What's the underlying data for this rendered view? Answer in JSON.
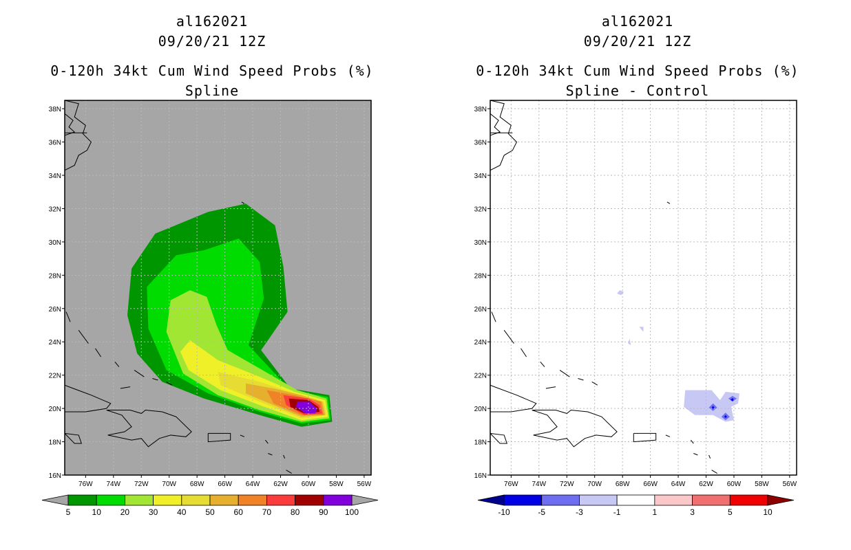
{
  "chart_data": [
    {
      "type": "heatmap",
      "storm_id": "al162021",
      "datetime": "09/20/21 12Z",
      "title": "0-120h 34kt Cum Wind Speed Probs (%)",
      "subtitle": "Spline",
      "units": "%",
      "lon_range": [
        -77.5,
        -55.5
      ],
      "lat_range": [
        16,
        38.5
      ],
      "x_ticks": [
        "76W",
        "74W",
        "72W",
        "70W",
        "68W",
        "66W",
        "64W",
        "62W",
        "60W",
        "58W",
        "56W"
      ],
      "y_ticks": [
        "16N",
        "18N",
        "20N",
        "22N",
        "24N",
        "26N",
        "28N",
        "30N",
        "32N",
        "34N",
        "36N",
        "38N"
      ],
      "grid": true,
      "colorbar": {
        "labels": [
          "5",
          "10",
          "20",
          "30",
          "40",
          "50",
          "60",
          "70",
          "80",
          "90",
          "100"
        ],
        "colors": [
          "#009600",
          "#00dc00",
          "#a0e632",
          "#f0f028",
          "#e6dc32",
          "#e6af2d",
          "#f08228",
          "#fa3c3c",
          "#a00000",
          "#8200dc"
        ],
        "extend_colors": [
          "#a6a6a6",
          "#a6a6a6"
        ]
      },
      "background_color": "#a6a6a6",
      "probability_contours": [
        {
          "min": 5,
          "color": "#009600",
          "polygon": [
            [
              -67.2,
              31.8
            ],
            [
              -64.5,
              32.3
            ],
            [
              -62.4,
              31
            ],
            [
              -61.8,
              28.5
            ],
            [
              -61.5,
              25.8
            ],
            [
              -63.4,
              23.5
            ],
            [
              -61.3,
              21.2
            ],
            [
              -58.5,
              20.8
            ],
            [
              -58.3,
              19.2
            ],
            [
              -60.5,
              18.9
            ],
            [
              -63.5,
              19.6
            ],
            [
              -67.5,
              20.6
            ],
            [
              -70.5,
              21.6
            ],
            [
              -72.3,
              23.3
            ],
            [
              -73,
              25.6
            ],
            [
              -72.7,
              28.4
            ],
            [
              -71,
              30.5
            ]
          ]
        },
        {
          "min": 10,
          "color": "#00dc00",
          "polygon": [
            [
              -67.5,
              29.5
            ],
            [
              -65,
              30.2
            ],
            [
              -63.5,
              28.8
            ],
            [
              -63.2,
              26.6
            ],
            [
              -64.3,
              23.8
            ],
            [
              -61.3,
              21.1
            ],
            [
              -58.6,
              20.7
            ],
            [
              -58.4,
              19.3
            ],
            [
              -60.5,
              19.1
            ],
            [
              -63.5,
              19.8
            ],
            [
              -67.2,
              20.9
            ],
            [
              -70.2,
              22.3
            ],
            [
              -71.5,
              24.8
            ],
            [
              -71.6,
              27.3
            ],
            [
              -69.5,
              29.2
            ]
          ]
        },
        {
          "min": 20,
          "color": "#a0e632",
          "polygon": [
            [
              -68.5,
              27.1
            ],
            [
              -67.3,
              26.7
            ],
            [
              -66.6,
              25
            ],
            [
              -65.8,
              23.5
            ],
            [
              -63.5,
              22.4
            ],
            [
              -60.8,
              21.1
            ],
            [
              -58.7,
              20.6
            ],
            [
              -58.5,
              19.4
            ],
            [
              -60.5,
              19.2
            ],
            [
              -63.5,
              19.9
            ],
            [
              -66.5,
              20.8
            ],
            [
              -69,
              22.1
            ],
            [
              -70.2,
              24.6
            ],
            [
              -69.9,
              26.5
            ]
          ]
        },
        {
          "min": 30,
          "color": "#f0f028",
          "polygon": [
            [
              -68.5,
              24.1
            ],
            [
              -66.5,
              22.9
            ],
            [
              -63.5,
              21.9
            ],
            [
              -61,
              21
            ],
            [
              -58.8,
              20.5
            ],
            [
              -58.6,
              19.5
            ],
            [
              -60.5,
              19.3
            ],
            [
              -63.5,
              20.2
            ],
            [
              -66.3,
              21.1
            ],
            [
              -68.6,
              22.3
            ],
            [
              -69.2,
              23.4
            ]
          ]
        },
        {
          "min": 40,
          "color": "#e6dc32",
          "polygon": [
            [
              -66.5,
              22.2
            ],
            [
              -63.5,
              21.6
            ],
            [
              -61,
              20.9
            ],
            [
              -58.9,
              20.4
            ],
            [
              -58.7,
              19.6
            ],
            [
              -60.5,
              19.4
            ],
            [
              -63.5,
              20.4
            ],
            [
              -66.3,
              21.4
            ]
          ]
        },
        {
          "min": 50,
          "color": "#e6af2d",
          "polygon": [
            [
              -64.5,
              21.5
            ],
            [
              -62.5,
              21.2
            ],
            [
              -60.5,
              20.8
            ],
            [
              -59,
              20.4
            ],
            [
              -58.8,
              19.6
            ],
            [
              -60.5,
              19.5
            ],
            [
              -62.5,
              20.2
            ],
            [
              -64.5,
              20.9
            ]
          ]
        },
        {
          "min": 60,
          "color": "#f08228",
          "polygon": [
            [
              -63,
              21.1
            ],
            [
              -61,
              20.8
            ],
            [
              -59.1,
              20.4
            ],
            [
              -58.9,
              19.6
            ],
            [
              -60.5,
              19.6
            ],
            [
              -62.5,
              20.3
            ]
          ]
        },
        {
          "min": 70,
          "color": "#fa3c3c",
          "polygon": [
            [
              -61.8,
              20.8
            ],
            [
              -60,
              20.6
            ],
            [
              -59.2,
              20.2
            ],
            [
              -59,
              19.7
            ],
            [
              -60.3,
              19.6
            ],
            [
              -61.6,
              20.2
            ]
          ]
        },
        {
          "min": 80,
          "color": "#a00000",
          "polygon": [
            [
              -61.4,
              20.6
            ],
            [
              -60,
              20.5
            ],
            [
              -59.3,
              20.1
            ],
            [
              -59.2,
              19.8
            ],
            [
              -60.3,
              19.7
            ],
            [
              -61.3,
              20.1
            ]
          ]
        },
        {
          "min": 90,
          "color": "#8200dc",
          "polygon": [
            [
              -60.8,
              20.4
            ],
            [
              -59.9,
              20.4
            ],
            [
              -59.4,
              20
            ],
            [
              -59.5,
              19.7
            ],
            [
              -60.2,
              19.7
            ],
            [
              -60.9,
              20.1
            ]
          ]
        }
      ]
    },
    {
      "type": "heatmap",
      "storm_id": "al162021",
      "datetime": "09/20/21 12Z",
      "title": "0-120h 34kt Cum Wind Speed Probs (%)",
      "subtitle": "Spline - Control",
      "units": "%",
      "lon_range": [
        -77.5,
        -55.5
      ],
      "lat_range": [
        16,
        38.5
      ],
      "x_ticks": [
        "76W",
        "74W",
        "72W",
        "70W",
        "68W",
        "66W",
        "64W",
        "62W",
        "60W",
        "58W",
        "56W"
      ],
      "y_ticks": [
        "16N",
        "18N",
        "20N",
        "22N",
        "24N",
        "26N",
        "28N",
        "30N",
        "32N",
        "34N",
        "36N",
        "38N"
      ],
      "grid": true,
      "colorbar": {
        "labels": [
          "-10",
          "-5",
          "-3",
          "-1",
          "1",
          "3",
          "5",
          "10"
        ],
        "colors": [
          "#0000e6",
          "#6e6ef0",
          "#c8c8f5",
          "#ffffff",
          "#fac8c8",
          "#f07070",
          "#f00000"
        ],
        "extend_colors": [
          "#00008c",
          "#8c0000"
        ]
      },
      "background_color": "#ffffff",
      "difference_contours": [
        {
          "range": "-3 to -1",
          "color": "#c8c8f5",
          "polygon": [
            [
              -68.2,
              27.1
            ],
            [
              -67.9,
              27
            ],
            [
              -68.1,
              26.8
            ],
            [
              -68.4,
              26.9
            ]
          ]
        },
        {
          "range": "-3 to -1",
          "color": "#c8c8f5",
          "polygon": [
            [
              -66.8,
              24.9
            ],
            [
              -66.5,
              24.9
            ],
            [
              -66.5,
              24.6
            ]
          ]
        },
        {
          "range": "-3 to -1",
          "color": "#c8c8f5",
          "polygon": [
            [
              -67.5,
              24.2
            ],
            [
              -67.4,
              23.8
            ],
            [
              -67.6,
              23.9
            ]
          ]
        },
        {
          "range": "-3 to -1",
          "color": "#c8c8f5",
          "polygon": [
            [
              -63.5,
              21.1
            ],
            [
              -61.6,
              21.1
            ],
            [
              -61,
              20.5
            ],
            [
              -60.6,
              21
            ],
            [
              -59.6,
              20.9
            ],
            [
              -59.7,
              20.3
            ],
            [
              -60.2,
              20.1
            ],
            [
              -60,
              19.3
            ],
            [
              -60.6,
              19.2
            ],
            [
              -61.5,
              19.6
            ],
            [
              -62.8,
              19.6
            ],
            [
              -63.6,
              20.1
            ]
          ]
        },
        {
          "range": "-5 to -3",
          "color": "#6e6ef0",
          "polygon": [
            [
              -60.1,
              20.75
            ],
            [
              -59.8,
              20.6
            ],
            [
              -60.1,
              20.4
            ],
            [
              -60.4,
              20.6
            ]
          ]
        },
        {
          "range": "-5 to -3",
          "color": "#6e6ef0",
          "polygon": [
            [
              -61.5,
              20.3
            ],
            [
              -61.2,
              20.05
            ],
            [
              -61.5,
              19.85
            ],
            [
              -61.8,
              20.05
            ]
          ]
        },
        {
          "range": "-5 to -3",
          "color": "#6e6ef0",
          "polygon": [
            [
              -60.6,
              19.75
            ],
            [
              -60.3,
              19.5
            ],
            [
              -60.6,
              19.3
            ],
            [
              -60.9,
              19.5
            ]
          ]
        },
        {
          "range": "-10 to -5",
          "color": "#0000e6",
          "polygon": [
            [
              -60.1,
              20.62
            ],
            [
              -59.95,
              20.5
            ],
            [
              -60.1,
              20.45
            ],
            [
              -60.25,
              20.52
            ]
          ]
        },
        {
          "range": "-10 to -5",
          "color": "#0000e6",
          "polygon": [
            [
              -61.5,
              20.15
            ],
            [
              -61.4,
              20.05
            ],
            [
              -61.5,
              19.97
            ],
            [
              -61.6,
              20.05
            ]
          ]
        },
        {
          "range": "-10 to -5",
          "color": "#0000e6",
          "polygon": [
            [
              -60.6,
              19.6
            ],
            [
              -60.5,
              19.5
            ],
            [
              -60.6,
              19.43
            ],
            [
              -60.7,
              19.5
            ]
          ]
        }
      ]
    }
  ]
}
